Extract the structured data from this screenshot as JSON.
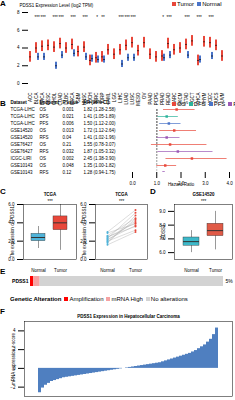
{
  "chart_data": [
    {
      "panel": "A",
      "type": "box",
      "y_label": "PDSS1 Expression Level (log2 TPM)",
      "categories": [
        "ACC",
        "BLCA",
        "BRCA",
        "CESC",
        "CHOL",
        "COAD",
        "DLBC",
        "ESCA",
        "GBM",
        "HNSC",
        "KICH",
        "KIRC",
        "KIRP",
        "LAML",
        "LGG",
        "LIHC",
        "LUAD",
        "LUSC",
        "MESO",
        "OV",
        "PAAD",
        "PCPG",
        "PRAD",
        "READ",
        "SARC",
        "SKCM",
        "STAD",
        "TGCT",
        "THCA",
        "THYM",
        "UCEC",
        "UCS",
        "UVM"
      ],
      "series": [
        {
          "name": "Tumor",
          "color": "#e8473a",
          "values": [
            3.0,
            4.0,
            4.2,
            4.3,
            4.1,
            4.5,
            4.0,
            4.4,
            3.6,
            4.1,
            2.6,
            2.9,
            3.0,
            3.8,
            3.3,
            3.8,
            4.3,
            4.6,
            3.7,
            4.6,
            3.3,
            3.0,
            3.1,
            4.5,
            3.8,
            4.0,
            4.4,
            4.8,
            2.6,
            4.7,
            4.6,
            4.3,
            3.1
          ],
          "q1": [
            2.4,
            3.4,
            3.6,
            3.7,
            3.5,
            3.9,
            3.4,
            3.8,
            3.0,
            3.5,
            2.0,
            2.3,
            2.4,
            3.2,
            2.7,
            3.2,
            3.7,
            4.0,
            3.1,
            4.0,
            2.7,
            2.4,
            2.5,
            3.9,
            3.2,
            3.4,
            3.8,
            4.2,
            2.0,
            4.1,
            4.0,
            3.7,
            2.5
          ],
          "q3": [
            3.6,
            4.6,
            4.8,
            4.9,
            4.7,
            5.1,
            4.6,
            5.0,
            4.2,
            4.7,
            3.2,
            3.5,
            3.6,
            4.4,
            3.9,
            4.4,
            4.9,
            5.2,
            4.3,
            5.2,
            3.9,
            3.6,
            3.7,
            5.1,
            4.4,
            4.6,
            5.0,
            5.4,
            3.2,
            5.3,
            5.2,
            4.9,
            3.7
          ]
        },
        {
          "name": "Normal",
          "color": "#4a74c9",
          "values": [
            null,
            3.0,
            3.0,
            null,
            2.0,
            3.2,
            null,
            3.4,
            null,
            3.0,
            2.8,
            2.7,
            2.7,
            null,
            null,
            2.2,
            2.9,
            2.9,
            null,
            null,
            null,
            null,
            2.9,
            3.2,
            null,
            null,
            3.2,
            null,
            2.7,
            null,
            3.1,
            null,
            null
          ],
          "q1": [
            null,
            2.6,
            2.6,
            null,
            1.6,
            2.8,
            null,
            3.0,
            null,
            2.6,
            2.4,
            2.3,
            2.3,
            null,
            null,
            1.8,
            2.5,
            2.5,
            null,
            null,
            null,
            null,
            2.5,
            2.8,
            null,
            null,
            2.8,
            null,
            2.3,
            null,
            2.7,
            null,
            null
          ],
          "q3": [
            null,
            3.4,
            3.4,
            null,
            2.4,
            3.6,
            null,
            3.8,
            null,
            3.4,
            3.2,
            3.1,
            3.1,
            null,
            null,
            2.6,
            3.3,
            3.3,
            null,
            null,
            null,
            null,
            3.3,
            3.6,
            null,
            null,
            3.6,
            null,
            3.1,
            null,
            3.5,
            null,
            null
          ]
        }
      ],
      "significance": [
        null,
        "***",
        "***",
        null,
        "***",
        "***",
        null,
        "***",
        null,
        "***",
        null,
        "*",
        "**",
        null,
        null,
        "***",
        "***",
        "***",
        null,
        null,
        null,
        null,
        "*",
        "***",
        null,
        null,
        "***",
        null,
        "***",
        null,
        "***",
        null,
        null
      ],
      "ylim": [
        0,
        8
      ],
      "yticks": [
        0,
        2,
        4,
        6,
        8
      ]
    },
    {
      "panel": "B",
      "type": "forest",
      "x_label": "Hazard Ratio",
      "columns": [
        "Dataset",
        "Endpoint",
        "P value",
        "HR (95% CI)"
      ],
      "series": [
        {
          "name": "OS",
          "color": "#e8473a"
        },
        {
          "name": "DFS",
          "color": "#2bb39b"
        },
        {
          "name": "PFS",
          "color": "#4a74c9"
        },
        {
          "name": "RFS",
          "color": "#9b59b6"
        }
      ],
      "rows": [
        {
          "dataset": "TCGA-LIHC",
          "endpoint": "OS",
          "p": 0.001,
          "hr": 1.82,
          "lo": 1.28,
          "hi": 2.58,
          "label": "1.82 (1.28-2.58)"
        },
        {
          "dataset": "TCGA-LIHC",
          "endpoint": "DFS",
          "p": 0.021,
          "hr": 1.41,
          "lo": 1.05,
          "hi": 1.89,
          "label": "1.41 (1.05-1.89)"
        },
        {
          "dataset": "TCGA-LIHC",
          "endpoint": "PFS",
          "p": 0.006,
          "hr": 1.5,
          "lo": 1.12,
          "hi": 2.0,
          "label": "1.50 (1.12-2.00)"
        },
        {
          "dataset": "GSE14520",
          "endpoint": "OS",
          "p": 0.013,
          "hr": 1.72,
          "lo": 1.12,
          "hi": 2.64,
          "label": "1.72 (1.12-2.64)"
        },
        {
          "dataset": "GSE14520",
          "endpoint": "RFS",
          "p": 0.04,
          "hr": 1.41,
          "lo": 1.02,
          "hi": 1.96,
          "label": "1.41 (1.02-1.96)"
        },
        {
          "dataset": "GSE76427",
          "endpoint": "OS",
          "p": 0.21,
          "hr": 1.55,
          "lo": 0.78,
          "hi": 3.07,
          "label": "1.55 (0.78-3.07)"
        },
        {
          "dataset": "GSE76427",
          "endpoint": "RFS",
          "p": 0.032,
          "hr": 1.87,
          "lo": 1.05,
          "hi": 3.32,
          "label": "1.87 (1.05-3.32)"
        },
        {
          "dataset": "ICGC-LIRI",
          "endpoint": "OS",
          "p": 0.002,
          "hr": 2.45,
          "lo": 1.38,
          "hi": 3.9,
          "label": "2.45 (1.38-3.90)"
        },
        {
          "dataset": "GSE10143",
          "endpoint": "OS",
          "p": 0.048,
          "hr": 1.35,
          "lo": 1.0,
          "hi": 1.82,
          "label": "1.35 (1.00-1.82)"
        },
        {
          "dataset": "GSE10143",
          "endpoint": "RFS",
          "p": 0.12,
          "hr": 1.28,
          "lo": 0.94,
          "hi": 1.75,
          "label": "1.28 (0.94-1.75)"
        }
      ],
      "reference": 1,
      "xlim": [
        0,
        4
      ],
      "xticks": [
        0,
        1,
        2,
        3,
        4
      ]
    },
    {
      "panel": "C",
      "type": "box",
      "title": "TCGA",
      "y_label": "The expression of PDSS1",
      "significance": "***",
      "stats": [
        {
          "name": "Normal",
          "color": "#4fb3d9",
          "min": 1.2,
          "q1": 2.0,
          "median": 2.4,
          "q3": 2.8,
          "max": 3.6
        },
        {
          "name": "Tumor",
          "color": "#e8473a",
          "min": 1.0,
          "q1": 3.2,
          "median": 4.0,
          "q3": 4.7,
          "max": 6
        }
      ],
      "ylim": [
        0,
        6
      ],
      "yticks": [
        0,
        2,
        4,
        6
      ]
    },
    {
      "type": "paired",
      "title": "TCGA",
      "y_label": "The expression of PDSS1",
      "significance": "***",
      "series": [
        {
          "name": "Normal",
          "color": "#4fb3d9",
          "values": [
            2.1,
            2.5,
            1.8,
            2.9,
            2.3,
            2.0,
            2.6,
            1.6,
            2.4,
            3.0,
            2.2,
            1.9
          ]
        },
        {
          "name": "Tumor",
          "color": "#e8473a",
          "values": [
            4.2,
            3.6,
            4.8,
            3.9,
            5.1,
            3.2,
            4.5,
            3.0,
            4.0,
            5.4,
            3.7,
            4.4
          ]
        }
      ],
      "ylim": [
        0,
        6
      ],
      "yticks": [
        0,
        2,
        4,
        6
      ]
    },
    {
      "panel": "D",
      "type": "box",
      "title": "GSE14520",
      "y_label": "PDSS1",
      "significance": "***",
      "stats": [
        {
          "name": "Normal",
          "color": "#3cb8c9",
          "min": 6.0,
          "q1": 6.5,
          "median": 6.8,
          "q3": 7.1,
          "max": 7.6
        },
        {
          "name": "Tumor",
          "color": "#e05a47",
          "min": 6.2,
          "q1": 7.2,
          "median": 7.6,
          "q3": 8.1,
          "max": 9.0
        }
      ],
      "ylim": [
        5.5,
        9.5
      ],
      "yticks": [
        6,
        7,
        8,
        9
      ]
    },
    {
      "panel": "E",
      "type": "oncoprint",
      "orientation": "horizontal",
      "stacked": true,
      "tick_labels": false,
      "gene": "PDSS1",
      "percent": "5%",
      "legend_title": "Genetic Alteration",
      "categories": [
        "Amplification",
        "mRNA High",
        "No alterations"
      ],
      "values": [
        6,
        12,
        342
      ],
      "colors": [
        "#ff0000",
        "#f5a3a3",
        "#d3d3d3"
      ],
      "xlim": [
        0,
        360
      ]
    },
    {
      "panel": "F",
      "type": "bar",
      "title": "PDSS1 Expression in Hepatocellular Carcinoma",
      "y_label": "mRNA expression z-score",
      "values": [
        -2.6,
        -2.1,
        -1.8,
        -1.6,
        -1.4,
        -1.3,
        -1.2,
        -1.1,
        -1.0,
        -0.95,
        -0.9,
        -0.85,
        -0.8,
        -0.75,
        -0.7,
        -0.65,
        -0.6,
        -0.55,
        -0.5,
        -0.45,
        -0.4,
        -0.35,
        -0.3,
        -0.25,
        -0.2,
        -0.15,
        -0.1,
        -0.05,
        0,
        0.05,
        0.1,
        0.15,
        0.2,
        0.25,
        0.3,
        0.35,
        0.4,
        0.45,
        0.5,
        0.55,
        0.6,
        0.7,
        0.8,
        0.9,
        1.0,
        1.1,
        1.2,
        1.3,
        1.4,
        1.5,
        1.6,
        1.75,
        1.9,
        2.1,
        2.3,
        2.5,
        2.8,
        3.1,
        3.6,
        4.3
      ],
      "color": "#4f7fc0",
      "ylim": [
        -3,
        5
      ],
      "yticks": [
        -2,
        0,
        2,
        4
      ],
      "tick_labels": "y"
    }
  ]
}
